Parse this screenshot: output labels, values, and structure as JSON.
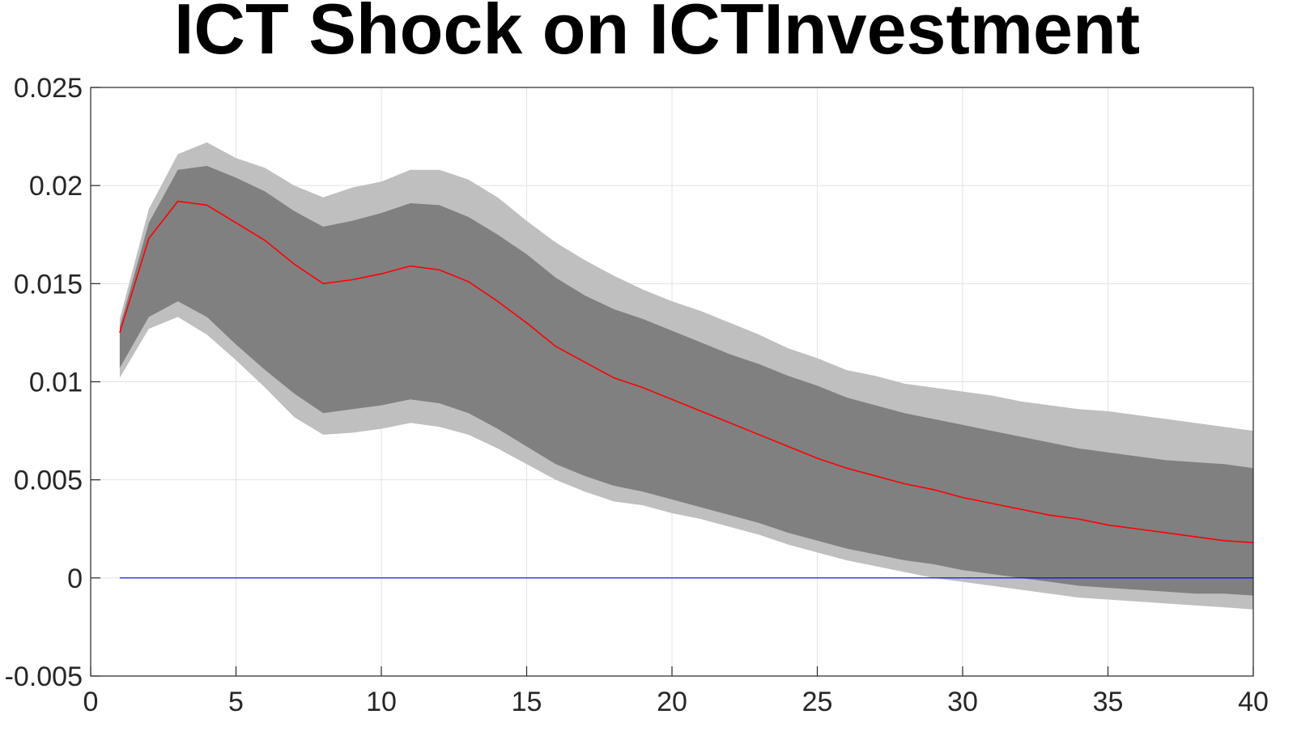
{
  "chart_data": {
    "type": "area",
    "title": "ICT Shock on ICTInvestment",
    "xlabel": "",
    "ylabel": "",
    "xlim": [
      0,
      40
    ],
    "ylim": [
      -0.005,
      0.025
    ],
    "xticks": [
      "0",
      "5",
      "10",
      "15",
      "20",
      "25",
      "30",
      "35",
      "40"
    ],
    "yticks": [
      "-0.005",
      "0",
      "0.005",
      "0.01",
      "0.015",
      "0.02",
      "0.025"
    ],
    "grid": true,
    "legend": "none",
    "x": [
      1,
      2,
      3,
      4,
      5,
      6,
      7,
      8,
      9,
      10,
      11,
      12,
      13,
      14,
      15,
      16,
      17,
      18,
      19,
      20,
      21,
      22,
      23,
      24,
      25,
      26,
      27,
      28,
      29,
      30,
      31,
      32,
      33,
      34,
      35,
      36,
      37,
      38,
      39,
      40
    ],
    "series": [
      {
        "role": "outer_upper",
        "color": "#bfbfbf",
        "values": [
          0.0132,
          0.0188,
          0.0216,
          0.0222,
          0.0214,
          0.0209,
          0.02,
          0.0194,
          0.0199,
          0.0202,
          0.0208,
          0.0208,
          0.0203,
          0.0194,
          0.0182,
          0.0171,
          0.0162,
          0.0154,
          0.0147,
          0.0141,
          0.0136,
          0.013,
          0.0124,
          0.0117,
          0.0112,
          0.0106,
          0.0103,
          0.0099,
          0.0097,
          0.0095,
          0.0093,
          0.009,
          0.0088,
          0.0086,
          0.0085,
          0.0083,
          0.0081,
          0.0079,
          0.0077,
          0.0075
        ]
      },
      {
        "role": "inner_upper",
        "color": "#808080",
        "values": [
          0.0128,
          0.0181,
          0.0208,
          0.021,
          0.0204,
          0.0197,
          0.0187,
          0.0179,
          0.0182,
          0.0186,
          0.0191,
          0.019,
          0.0184,
          0.0175,
          0.0165,
          0.0153,
          0.0144,
          0.0137,
          0.0132,
          0.0126,
          0.012,
          0.0114,
          0.0109,
          0.0103,
          0.0098,
          0.0092,
          0.0088,
          0.0084,
          0.0081,
          0.0078,
          0.0075,
          0.0072,
          0.0069,
          0.0066,
          0.0064,
          0.0062,
          0.006,
          0.0059,
          0.0058,
          0.0056
        ]
      },
      {
        "role": "median",
        "color": "#ff0000",
        "values": [
          0.0125,
          0.0173,
          0.0192,
          0.019,
          0.0181,
          0.0172,
          0.016,
          0.015,
          0.0152,
          0.0155,
          0.0159,
          0.0157,
          0.0151,
          0.0141,
          0.013,
          0.0118,
          0.011,
          0.0102,
          0.0097,
          0.0091,
          0.0085,
          0.0079,
          0.0073,
          0.0067,
          0.0061,
          0.0056,
          0.0052,
          0.0048,
          0.0045,
          0.0041,
          0.0038,
          0.0035,
          0.0032,
          0.003,
          0.0027,
          0.0025,
          0.0023,
          0.0021,
          0.0019,
          0.0018
        ]
      },
      {
        "role": "inner_lower",
        "color": "#808080",
        "values": [
          0.0107,
          0.0133,
          0.0141,
          0.0133,
          0.0119,
          0.0106,
          0.0094,
          0.0084,
          0.0086,
          0.0088,
          0.0091,
          0.0089,
          0.0084,
          0.0076,
          0.0067,
          0.0058,
          0.0052,
          0.0047,
          0.0044,
          0.004,
          0.0036,
          0.0032,
          0.0028,
          0.0023,
          0.0019,
          0.0015,
          0.0012,
          0.0009,
          0.0007,
          0.0004,
          0.0002,
          0.0,
          -0.0002,
          -0.0004,
          -0.0005,
          -0.0006,
          -0.0007,
          -0.0008,
          -0.0008,
          -0.0009
        ]
      },
      {
        "role": "outer_lower",
        "color": "#bfbfbf",
        "values": [
          0.0102,
          0.0127,
          0.0133,
          0.0124,
          0.0111,
          0.0097,
          0.0082,
          0.0073,
          0.0074,
          0.0076,
          0.0079,
          0.0077,
          0.0073,
          0.0066,
          0.0058,
          0.005,
          0.0044,
          0.0039,
          0.0037,
          0.0033,
          0.003,
          0.0026,
          0.0022,
          0.0017,
          0.0013,
          0.0009,
          0.0006,
          0.0003,
          0.0,
          -0.0002,
          -0.0004,
          -0.0006,
          -0.0008,
          -0.001,
          -0.0011,
          -0.0012,
          -0.0013,
          -0.0014,
          -0.0015,
          -0.0016
        ]
      },
      {
        "role": "zero_line",
        "color": "#0000ff",
        "values": [
          0,
          0,
          0,
          0,
          0,
          0,
          0,
          0,
          0,
          0,
          0,
          0,
          0,
          0,
          0,
          0,
          0,
          0,
          0,
          0,
          0,
          0,
          0,
          0,
          0,
          0,
          0,
          0,
          0,
          0,
          0,
          0,
          0,
          0,
          0,
          0,
          0,
          0,
          0,
          0
        ]
      }
    ]
  }
}
